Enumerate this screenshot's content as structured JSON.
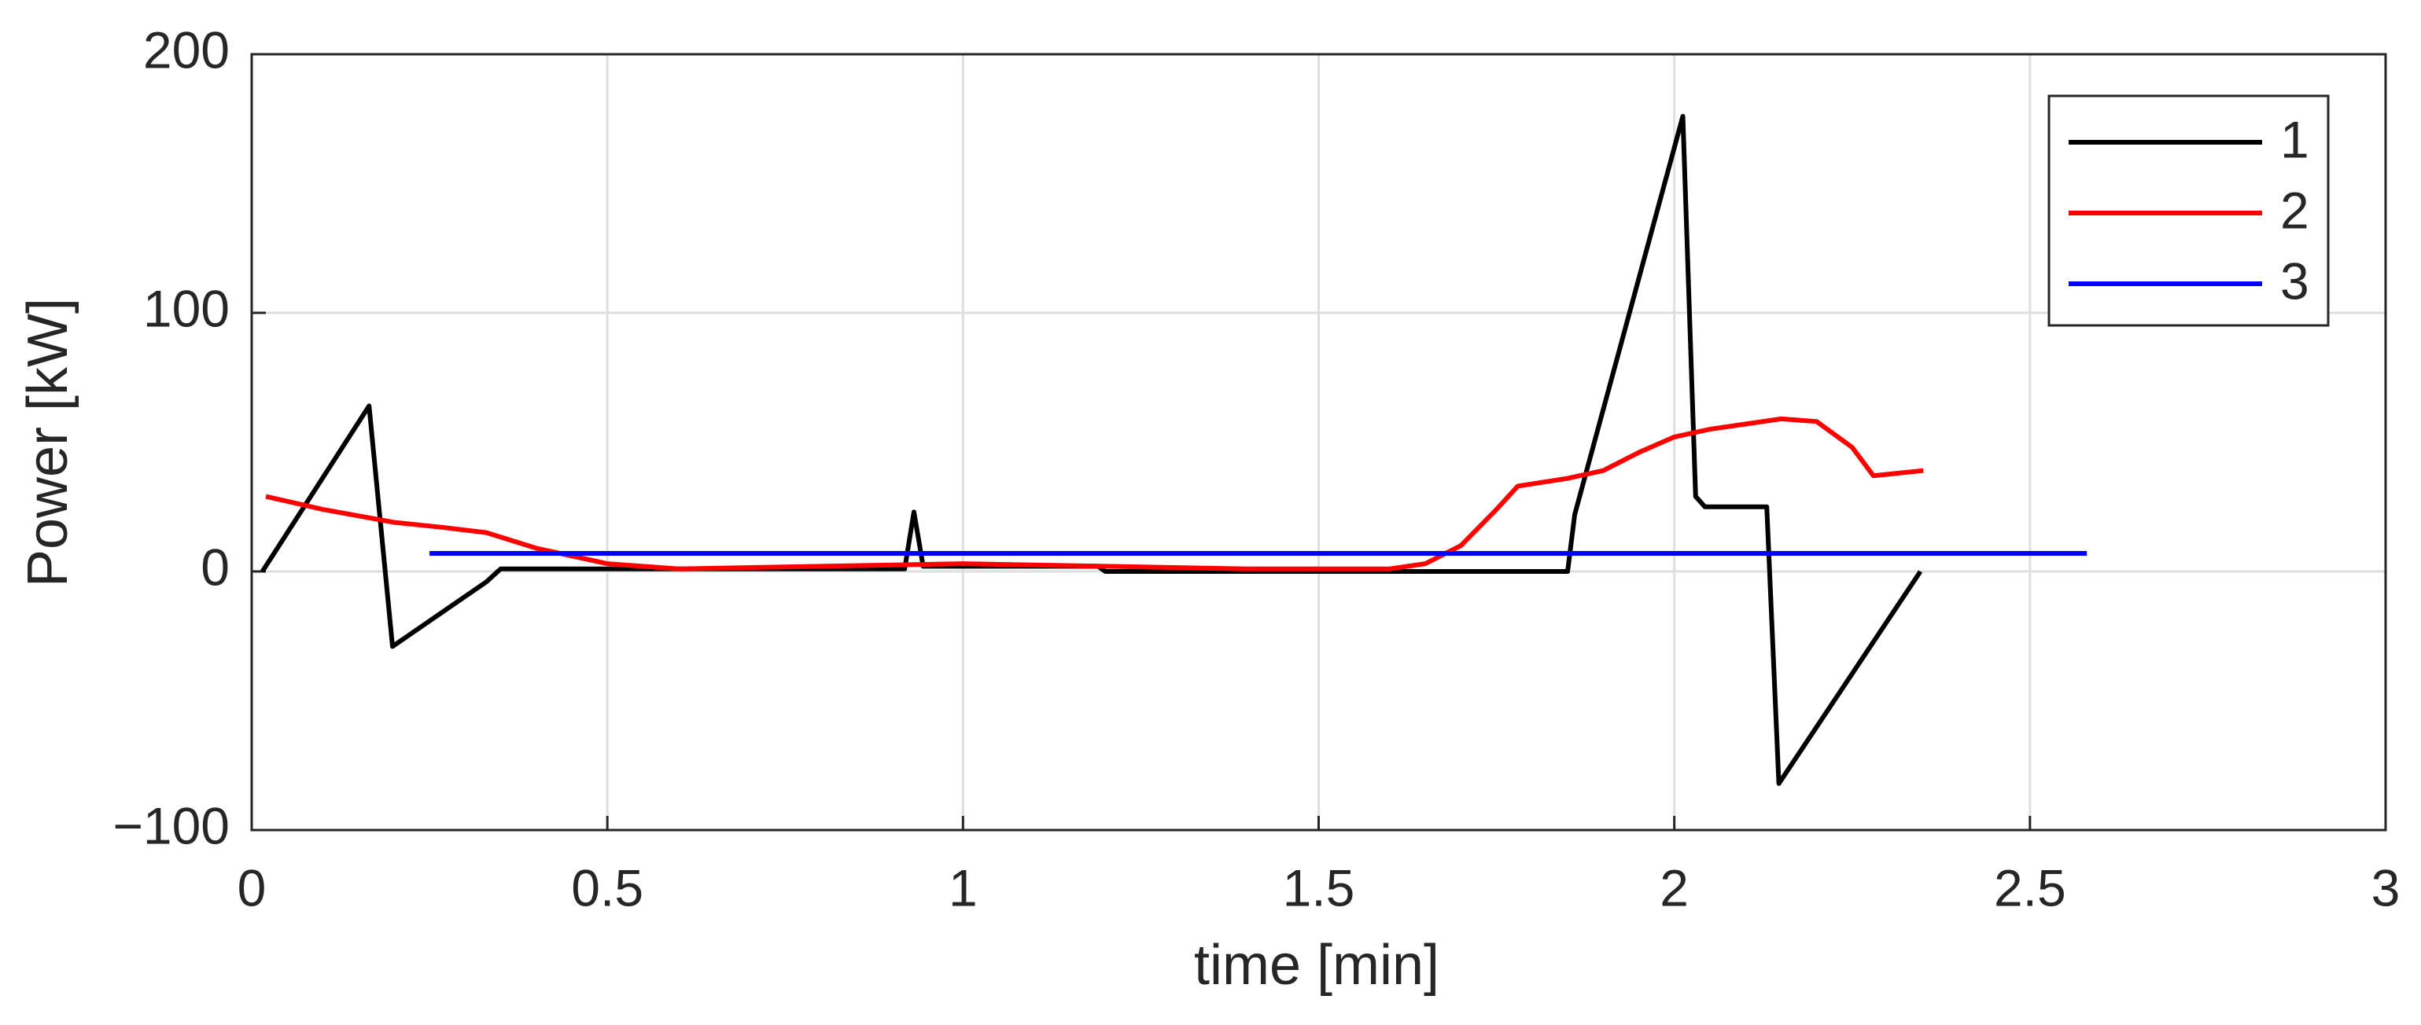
{
  "chart_data": {
    "type": "line",
    "xlabel": "time [min]",
    "ylabel": "Power [kW]",
    "xlim": [
      0,
      3
    ],
    "xticks": [
      0,
      0.5,
      1,
      1.5,
      2,
      2.5,
      3
    ],
    "ylim": [
      -100,
      200
    ],
    "yticks": [
      {
        "value": -100,
        "label": "−100"
      },
      0,
      100,
      200
    ],
    "grid": true,
    "legend": "upper right",
    "series": [
      {
        "name": "1",
        "color": "#000000",
        "x": [
          0.015,
          0.165,
          0.198,
          0.33,
          0.35,
          0.918,
          0.931,
          0.944,
          1.19,
          1.2,
          1.85,
          1.86,
          2.012,
          2.03,
          2.043,
          2.13,
          2.147,
          2.346
        ],
        "values": [
          0,
          64,
          -29,
          -4,
          1,
          1,
          23,
          2,
          2,
          0,
          0,
          22,
          176,
          29,
          25,
          25,
          -82,
          0
        ]
      },
      {
        "name": "2",
        "color": "#ff0000",
        "x": [
          0.02,
          0.1,
          0.2,
          0.27,
          0.33,
          0.4,
          0.5,
          0.6,
          0.8,
          1.0,
          1.2,
          1.4,
          1.6,
          1.65,
          1.7,
          1.75,
          1.78,
          1.85,
          1.9,
          1.95,
          2.0,
          2.05,
          2.1,
          2.15,
          2.2,
          2.25,
          2.28,
          2.35
        ],
        "values": [
          29,
          24,
          19,
          17,
          15,
          9,
          3,
          1,
          2,
          3,
          2,
          1,
          1,
          3,
          10,
          24,
          33,
          36,
          39,
          46,
          52,
          55,
          57,
          59,
          58,
          48,
          37,
          39
        ]
      },
      {
        "name": "3",
        "color": "#0000ff",
        "x": [
          0.25,
          2.58
        ],
        "values": [
          7,
          7
        ]
      }
    ]
  }
}
